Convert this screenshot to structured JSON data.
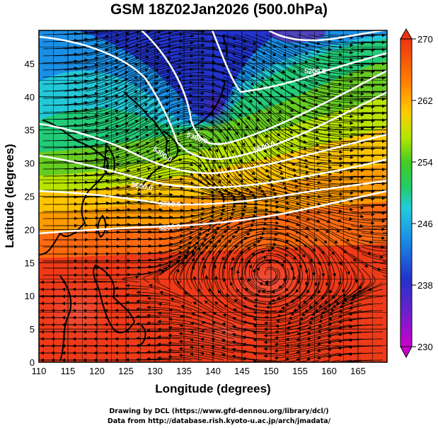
{
  "title": "GSM 18Z02Jan2026 (500.0hPa)",
  "x_axis": {
    "label": "Longitude (degrees)",
    "ticks": [
      "110",
      "115",
      "120",
      "125",
      "130",
      "135",
      "140",
      "145",
      "150",
      "155",
      "160",
      "165"
    ],
    "range": [
      110,
      170
    ]
  },
  "y_axis": {
    "label": "Latitude  (degrees)",
    "ticks": [
      "0",
      "5",
      "10",
      "15",
      "20",
      "25",
      "30",
      "35",
      "40",
      "45"
    ],
    "range": [
      0,
      50
    ]
  },
  "colorbar": {
    "ticks": [
      "230",
      "238",
      "246",
      "254",
      "262",
      "270"
    ],
    "range": [
      230,
      270
    ],
    "colors": [
      "#cc00cc",
      "#3333cc",
      "#1a7fe6",
      "#33d9cc",
      "#33cc33",
      "#b3e600",
      "#ffcc00",
      "#ff8000",
      "#ee3311"
    ]
  },
  "contours": [
    {
      "label": "5200.0"
    },
    {
      "label": "5300.0"
    },
    {
      "label": "5400.0"
    },
    {
      "label": "5500.0"
    },
    {
      "label": "5600.0"
    },
    {
      "label": "5700.0"
    },
    {
      "label": "5800.0"
    },
    {
      "label": "5900.0"
    }
  ],
  "credits": {
    "line1": "Drawing by DCL (https://www.gfd-dennou.org/library/dcl/)",
    "line2": "Data from http://database.rish.kyoto-u.ac.jp/arch/jmadata/"
  }
}
